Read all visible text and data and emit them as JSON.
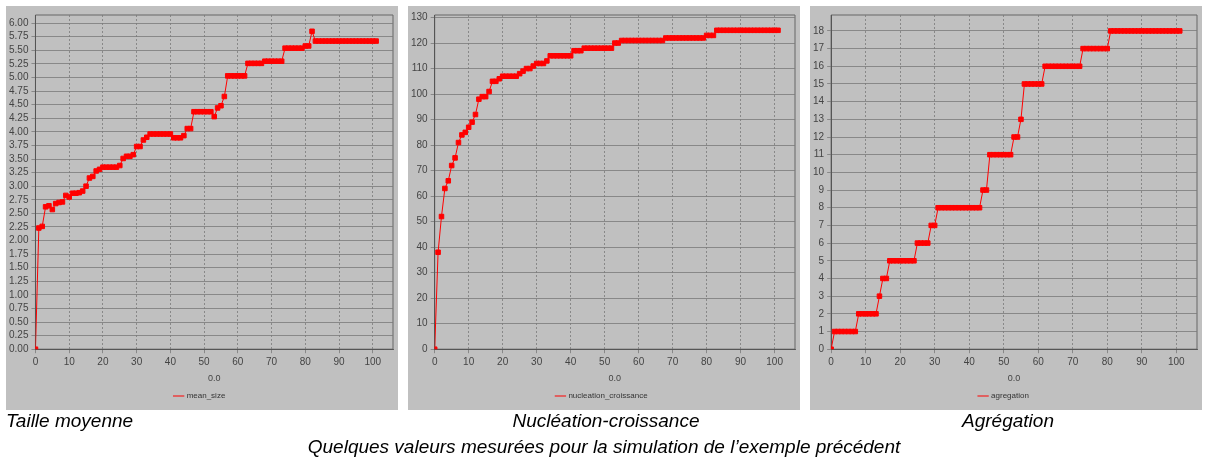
{
  "chart_data": [
    {
      "type": "line",
      "title": "Taille moyenne",
      "xlabel": "0.0",
      "xlim": [
        0,
        106
      ],
      "xticks": [
        0,
        10,
        20,
        30,
        40,
        50,
        60,
        70,
        80,
        90,
        100
      ],
      "ylim": [
        0,
        6.15
      ],
      "yticks": [
        {
          "value": 0,
          "label": "0.00"
        },
        {
          "value": 0.25,
          "label": "0.25"
        },
        {
          "value": 0.5,
          "label": "0.50"
        },
        {
          "value": 0.75,
          "label": "0.75"
        },
        {
          "value": 1,
          "label": "1.00"
        },
        {
          "value": 1.25,
          "label": "1.25"
        },
        {
          "value": 1.5,
          "label": "1.50"
        },
        {
          "value": 1.75,
          "label": "1.75"
        },
        {
          "value": 2,
          "label": "2.00"
        },
        {
          "value": 2.25,
          "label": "2.25"
        },
        {
          "value": 2.5,
          "label": "2.50"
        },
        {
          "value": 2.75,
          "label": "2.75"
        },
        {
          "value": 3,
          "label": "3.00"
        },
        {
          "value": 3.25,
          "label": "3.25"
        },
        {
          "value": 3.5,
          "label": "3.50"
        },
        {
          "value": 3.75,
          "label": "3.75"
        },
        {
          "value": 4,
          "label": "4.00"
        },
        {
          "value": 4.25,
          "label": "4.25"
        },
        {
          "value": 4.5,
          "label": "4.50"
        },
        {
          "value": 4.75,
          "label": "4.75"
        },
        {
          "value": 5,
          "label": "5.00"
        },
        {
          "value": 5.25,
          "label": "5.25"
        },
        {
          "value": 5.5,
          "label": "5.50"
        },
        {
          "value": 5.75,
          "label": "5.75"
        },
        {
          "value": 6,
          "label": "6.00"
        }
      ],
      "grid": true,
      "legend": "bottom",
      "marker": "square",
      "line_style": "solid",
      "x": [
        0,
        1,
        2,
        3,
        4,
        5,
        6,
        7,
        8,
        9,
        10,
        11,
        12,
        13,
        14,
        15,
        16,
        17,
        18,
        19,
        20,
        21,
        22,
        23,
        24,
        25,
        26,
        27,
        28,
        29,
        30,
        31,
        32,
        33,
        34,
        35,
        36,
        37,
        38,
        39,
        40,
        41,
        42,
        43,
        44,
        45,
        46,
        47,
        48,
        49,
        50,
        51,
        52,
        53,
        54,
        55,
        56,
        57,
        58,
        59,
        60,
        61,
        62,
        63,
        64,
        65,
        66,
        67,
        68,
        69,
        70,
        71,
        72,
        73,
        74,
        75,
        76,
        77,
        78,
        79,
        80,
        81,
        82,
        83,
        84,
        85,
        86,
        87,
        88,
        89,
        90,
        91,
        92,
        93,
        94,
        95,
        96,
        97,
        98,
        99,
        100,
        101
      ],
      "series": [
        {
          "name": "mean_size",
          "color": "#ff0000",
          "values": [
            0,
            2.23,
            2.26,
            2.62,
            2.64,
            2.57,
            2.68,
            2.7,
            2.71,
            2.83,
            2.8,
            2.87,
            2.87,
            2.88,
            2.91,
            3,
            3.15,
            3.18,
            3.28,
            3.31,
            3.35,
            3.35,
            3.35,
            3.35,
            3.35,
            3.38,
            3.51,
            3.55,
            3.55,
            3.58,
            3.73,
            3.73,
            3.85,
            3.9,
            3.96,
            3.96,
            3.96,
            3.96,
            3.96,
            3.96,
            3.96,
            3.89,
            3.89,
            3.89,
            3.93,
            4.06,
            4.06,
            4.37,
            4.37,
            4.37,
            4.37,
            4.37,
            4.37,
            4.28,
            4.44,
            4.48,
            4.65,
            5.03,
            5.03,
            5.03,
            5.03,
            5.03,
            5.03,
            5.26,
            5.26,
            5.26,
            5.26,
            5.26,
            5.3,
            5.3,
            5.3,
            5.3,
            5.3,
            5.3,
            5.54,
            5.54,
            5.54,
            5.54,
            5.54,
            5.54,
            5.58,
            5.58,
            5.85,
            5.67,
            5.67,
            5.67,
            5.67,
            5.67,
            5.67,
            5.67,
            5.67,
            5.67,
            5.67,
            5.67,
            5.67,
            5.67,
            5.67,
            5.67,
            5.67,
            5.67,
            5.67,
            5.67
          ]
        }
      ]
    },
    {
      "type": "line",
      "title": "Nucléation-croissance",
      "xlabel": "0.0",
      "xlim": [
        0,
        106
      ],
      "xticks": [
        0,
        10,
        20,
        30,
        40,
        50,
        60,
        70,
        80,
        90,
        100
      ],
      "ylim": [
        0,
        131
      ],
      "yticks": [
        0,
        10,
        20,
        30,
        40,
        50,
        60,
        70,
        80,
        90,
        100,
        110,
        120,
        130
      ],
      "grid": true,
      "legend": "bottom",
      "marker": "square",
      "line_style": "solid",
      "annotations": [
        "Quelques valeurs mesurées pour la simulation de l’exemple précédent"
      ],
      "x": [
        0,
        1,
        2,
        3,
        4,
        5,
        6,
        7,
        8,
        9,
        10,
        11,
        12,
        13,
        14,
        15,
        16,
        17,
        18,
        19,
        20,
        21,
        22,
        23,
        24,
        25,
        26,
        27,
        28,
        29,
        30,
        31,
        32,
        33,
        34,
        35,
        36,
        37,
        38,
        39,
        40,
        41,
        42,
        43,
        44,
        45,
        46,
        47,
        48,
        49,
        50,
        51,
        52,
        53,
        54,
        55,
        56,
        57,
        58,
        59,
        60,
        61,
        62,
        63,
        64,
        65,
        66,
        67,
        68,
        69,
        70,
        71,
        72,
        73,
        74,
        75,
        76,
        77,
        78,
        79,
        80,
        81,
        82,
        83,
        84,
        85,
        86,
        87,
        88,
        89,
        90,
        91,
        92,
        93,
        94,
        95,
        96,
        97,
        98,
        99,
        100,
        101
      ],
      "series": [
        {
          "name": "nucleation_croissance",
          "color": "#ff0000",
          "values": [
            0,
            38,
            52,
            63,
            66,
            72,
            75,
            81,
            84,
            85,
            87,
            89,
            92,
            98,
            99,
            99,
            101,
            105,
            105,
            106,
            107,
            107,
            107,
            107,
            107,
            108,
            109,
            110,
            110,
            111,
            112,
            112,
            112,
            113,
            115,
            115,
            115,
            115,
            115,
            115,
            115,
            117,
            117,
            117,
            118,
            118,
            118,
            118,
            118,
            118,
            118,
            118,
            118,
            120,
            120,
            121,
            121,
            121,
            121,
            121,
            121,
            121,
            121,
            121,
            121,
            121,
            121,
            121,
            122,
            122,
            122,
            122,
            122,
            122,
            122,
            122,
            122,
            122,
            122,
            122,
            123,
            123,
            123,
            125,
            125,
            125,
            125,
            125,
            125,
            125,
            125,
            125,
            125,
            125,
            125,
            125,
            125,
            125,
            125,
            125,
            125,
            125
          ]
        }
      ]
    },
    {
      "type": "line",
      "title": "Agrégation",
      "xlabel": "0.0",
      "xlim": [
        0,
        106
      ],
      "xticks": [
        0,
        10,
        20,
        30,
        40,
        50,
        60,
        70,
        80,
        90,
        100
      ],
      "ylim": [
        0,
        18.9
      ],
      "yticks": [
        0,
        1,
        2,
        3,
        4,
        5,
        6,
        7,
        8,
        9,
        10,
        11,
        12,
        13,
        14,
        15,
        16,
        17,
        18
      ],
      "grid": true,
      "legend": "bottom",
      "marker": "square",
      "line_style": "solid",
      "x": [
        0,
        1,
        2,
        3,
        4,
        5,
        6,
        7,
        8,
        9,
        10,
        11,
        12,
        13,
        14,
        15,
        16,
        17,
        18,
        19,
        20,
        21,
        22,
        23,
        24,
        25,
        26,
        27,
        28,
        29,
        30,
        31,
        32,
        33,
        34,
        35,
        36,
        37,
        38,
        39,
        40,
        41,
        42,
        43,
        44,
        45,
        46,
        47,
        48,
        49,
        50,
        51,
        52,
        53,
        54,
        55,
        56,
        57,
        58,
        59,
        60,
        61,
        62,
        63,
        64,
        65,
        66,
        67,
        68,
        69,
        70,
        71,
        72,
        73,
        74,
        75,
        76,
        77,
        78,
        79,
        80,
        81,
        82,
        83,
        84,
        85,
        86,
        87,
        88,
        89,
        90,
        91,
        92,
        93,
        94,
        95,
        96,
        97,
        98,
        99,
        100,
        101
      ],
      "series": [
        {
          "name": "agregation",
          "color": "#ff0000",
          "values": [
            0,
            1,
            1,
            1,
            1,
            1,
            1,
            1,
            2,
            2,
            2,
            2,
            2,
            2,
            3,
            4,
            4,
            5,
            5,
            5,
            5,
            5,
            5,
            5,
            5,
            6,
            6,
            6,
            6,
            7,
            7,
            8,
            8,
            8,
            8,
            8,
            8,
            8,
            8,
            8,
            8,
            8,
            8,
            8,
            9,
            9,
            11,
            11,
            11,
            11,
            11,
            11,
            11,
            12,
            12,
            13,
            15,
            15,
            15,
            15,
            15,
            15,
            16,
            16,
            16,
            16,
            16,
            16,
            16,
            16,
            16,
            16,
            16,
            17,
            17,
            17,
            17,
            17,
            17,
            17,
            17,
            18,
            18,
            18,
            18,
            18,
            18,
            18,
            18,
            18,
            18,
            18,
            18,
            18,
            18,
            18,
            18,
            18,
            18,
            18,
            18,
            18
          ]
        }
      ]
    }
  ]
}
